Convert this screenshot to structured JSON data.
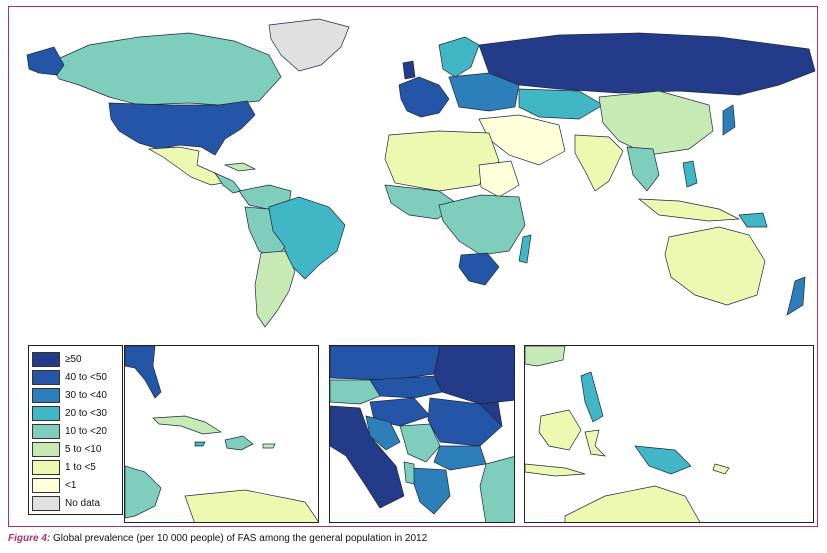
{
  "legend": {
    "items": [
      {
        "label": "≥50",
        "color": "#243b8a"
      },
      {
        "label": "40 to <50",
        "color": "#2455a6"
      },
      {
        "label": "30 to <40",
        "color": "#2c7fb8"
      },
      {
        "label": "20 to <30",
        "color": "#41b6c4"
      },
      {
        "label": "10 to <20",
        "color": "#7fcdbb"
      },
      {
        "label": "5 to <10",
        "color": "#c7e9b4"
      },
      {
        "label": "1 to <5",
        "color": "#edf8b1"
      },
      {
        "label": "<1",
        "color": "#ffffd9"
      },
      {
        "label": "No data",
        "color": "#e0e0e0"
      }
    ]
  },
  "caption": {
    "label": "Figure 4:",
    "text": " Global prevalence (per 10 000 people) of FAS among the general population in 2012"
  },
  "colors": {
    "frame": "#a8336b",
    "border": "#222222"
  }
}
